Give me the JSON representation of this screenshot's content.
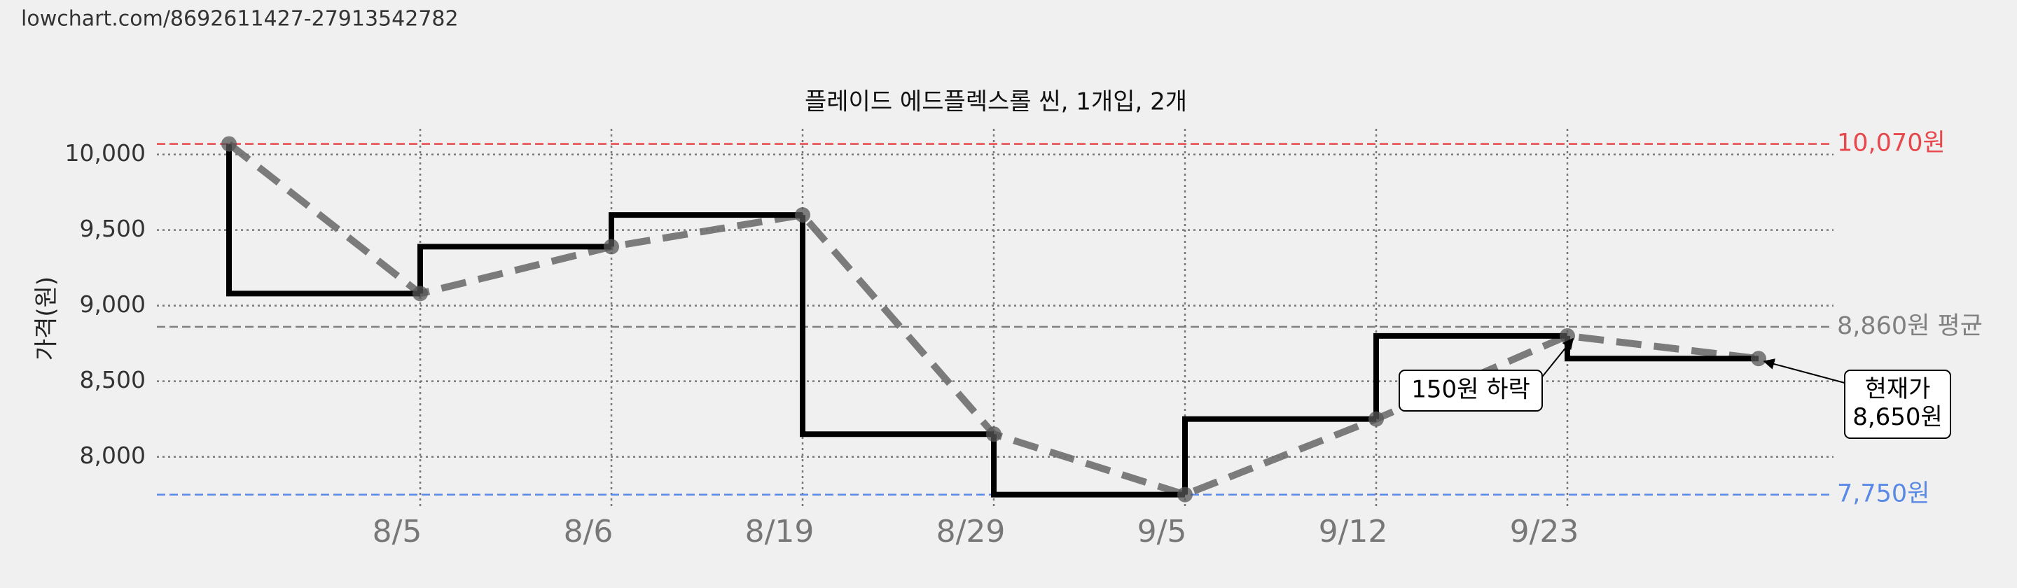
{
  "header": {
    "url": "lowchart.com/8692611427-27913542782"
  },
  "chart_data": {
    "type": "step",
    "title": "플레이드 에드플렉스롤 씬, 1개입, 2개",
    "y_label": "가격(원)",
    "categories": [
      null,
      "8/5",
      "8/6",
      "8/19",
      "8/29",
      "9/5",
      "9/12",
      "9/23",
      null
    ],
    "values": [
      10070,
      9080,
      9390,
      9600,
      8150,
      7750,
      8250,
      8800,
      8650
    ],
    "ylim": [
      7660,
      10170
    ],
    "yticks": [
      {
        "value": 8000,
        "label": "8,000"
      },
      {
        "value": 8500,
        "label": "8,500"
      },
      {
        "value": 9000,
        "label": "9,000"
      },
      {
        "value": 9500,
        "label": "9,500"
      },
      {
        "value": 10000,
        "label": "10,000"
      }
    ],
    "grid": true,
    "color": "#000000",
    "trend_color": "#6e6e6e",
    "reference_lines": [
      {
        "value": 10070,
        "label": "10,070원",
        "color": "#e8474c"
      },
      {
        "value": 8860,
        "label": "8,860원 평균",
        "color": "#808080"
      },
      {
        "value": 7750,
        "label": "7,750원",
        "color": "#5a8ae6"
      }
    ],
    "annotations": [
      {
        "lines": [
          "150원 하락"
        ]
      },
      {
        "lines": [
          "현재가",
          "8,650원"
        ]
      }
    ]
  }
}
